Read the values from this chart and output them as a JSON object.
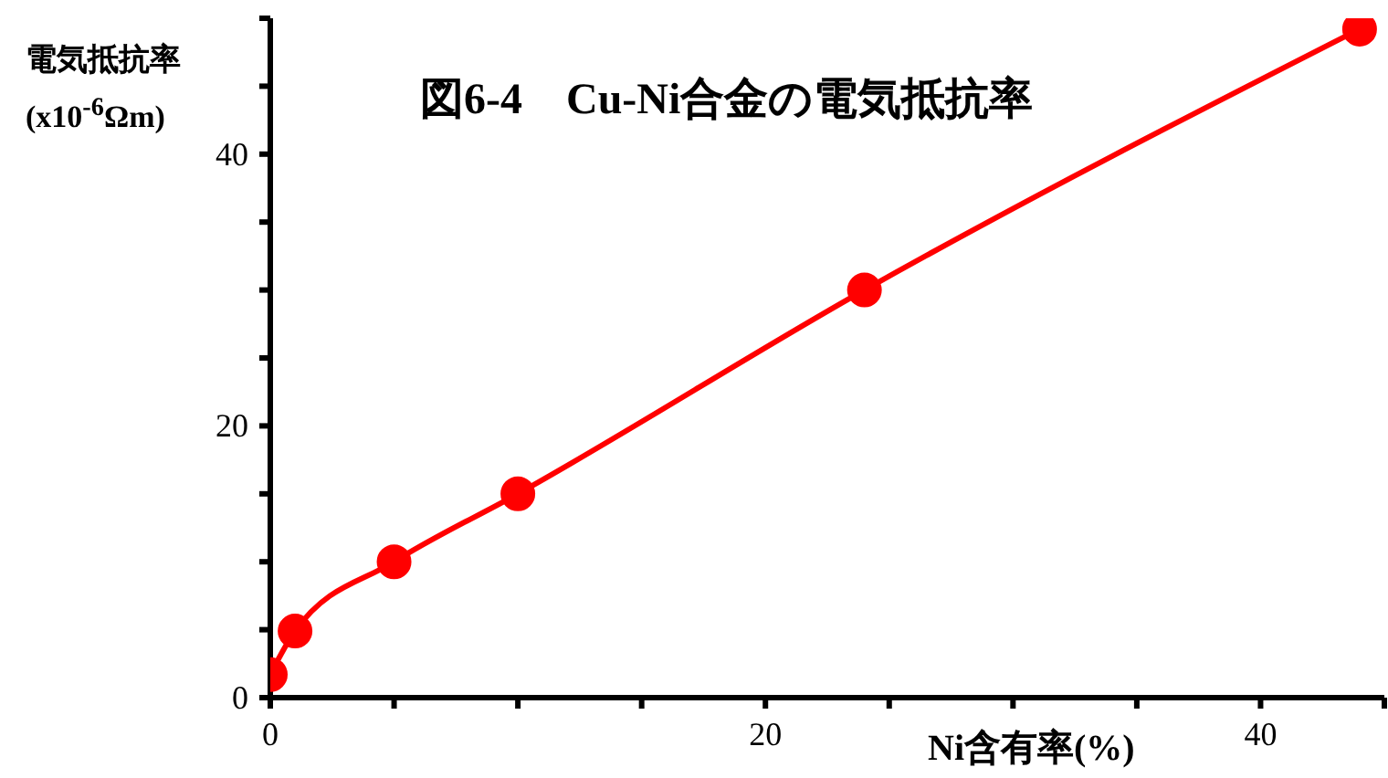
{
  "chart_data": {
    "type": "line",
    "title": "図6-4　Cu-Ni合金の電気抵抗率",
    "xlabel": "Ni含有率(%)",
    "ylabel": "電気抵抗率\n(x10$^{-6}$Ωm)",
    "x": [
      0,
      1,
      5,
      10,
      24,
      44
    ],
    "series": [
      {
        "color": "#ff0000",
        "values": [
          1.7,
          4.9,
          10,
          15,
          30,
          49.2
        ]
      }
    ],
    "xlim": [
      0,
      45
    ],
    "xticks": [
      0,
      {
        "value": 5,
        "label": null
      },
      {
        "value": 10,
        "label": null
      },
      {
        "value": 15,
        "label": null
      },
      20,
      {
        "value": 25,
        "label": null
      },
      {
        "value": 30,
        "label": null
      },
      {
        "value": 35,
        "label": null
      },
      40,
      {
        "value": 45,
        "label": null
      }
    ],
    "ylim": [
      0,
      50
    ],
    "yticks": [
      0,
      {
        "value": 5,
        "label": null
      },
      {
        "value": 10,
        "label": null
      },
      {
        "value": 15,
        "label": null
      },
      20,
      {
        "value": 25,
        "label": null
      },
      {
        "value": 30,
        "label": null
      },
      {
        "value": 35,
        "label": null
      },
      40,
      {
        "value": 45,
        "label": null
      },
      {
        "value": 50,
        "label": null
      }
    ],
    "grid": false,
    "legend": false,
    "marker": "circle",
    "line_style": "solid"
  }
}
